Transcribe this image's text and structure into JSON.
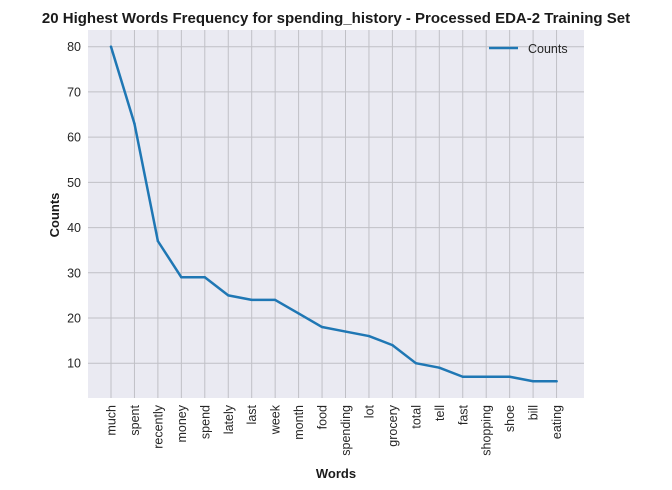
{
  "chart_data": {
    "type": "line",
    "title": "20 Highest Words Frequency for spending_history - Processed EDA-2 Training Set",
    "xlabel": "Words",
    "ylabel": "Counts",
    "categories": [
      "much",
      "spent",
      "recently",
      "money",
      "spend",
      "lately",
      "last",
      "week",
      "month",
      "food",
      "spending",
      "lot",
      "grocery",
      "total",
      "tell",
      "fast",
      "shopping",
      "shoe",
      "bill",
      "eating"
    ],
    "series": [
      {
        "name": "Counts",
        "values": [
          80,
          63,
          37,
          29,
          29,
          25,
          24,
          24,
          21,
          18,
          17,
          16,
          14,
          10,
          9,
          7,
          7,
          7,
          6,
          6
        ],
        "color": "#1f77b4"
      }
    ],
    "ylim": [
      2.3,
      83.7
    ],
    "yticks": [
      10,
      20,
      30,
      40,
      50,
      60,
      70,
      80
    ],
    "grid": true,
    "legend_position": "top-right",
    "background": "#eaeaf2"
  }
}
